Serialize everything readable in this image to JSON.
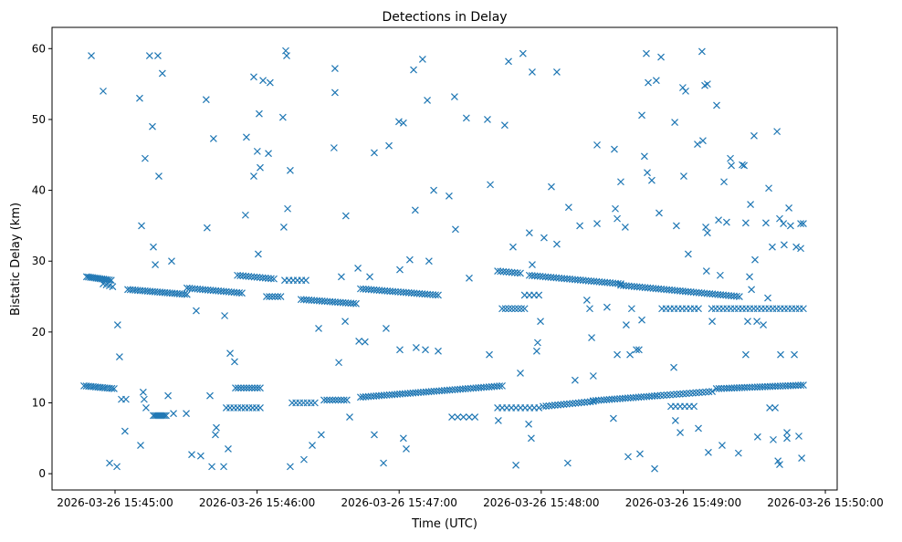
{
  "chart_data": {
    "type": "scatter",
    "title": "Detections in Delay",
    "xlabel": "Time (UTC)",
    "ylabel": "Bistatic Delay (km)",
    "x_units": "seconds after 2026-03-26 15:44:00 UTC",
    "xlim": [
      33.4,
      365.0
    ],
    "ylim": [
      -2.3,
      63.0
    ],
    "grid": false,
    "marker": "x",
    "color": "#1f77b4",
    "x_ticks": [
      {
        "value": 60,
        "label": "2026-03-26 15:45:00"
      },
      {
        "value": 120,
        "label": "2026-03-26 15:46:00"
      },
      {
        "value": 180,
        "label": "2026-03-26 15:47:00"
      },
      {
        "value": 240,
        "label": "2026-03-26 15:48:00"
      },
      {
        "value": 300,
        "label": "2026-03-26 15:49:00"
      },
      {
        "value": 360,
        "label": "2026-03-26 15:50:00"
      }
    ],
    "y_ticks": [
      {
        "value": 0,
        "label": "0"
      },
      {
        "value": 10,
        "label": "10"
      },
      {
        "value": 20,
        "label": "20"
      },
      {
        "value": 30,
        "label": "30"
      },
      {
        "value": 40,
        "label": "40"
      },
      {
        "value": 50,
        "label": "50"
      },
      {
        "value": 60,
        "label": "60"
      }
    ],
    "track_segments": [
      [
        48.0,
        27.8,
        58.4,
        27.3,
        14
      ],
      [
        55,
        26.8,
        59,
        26.4,
        4
      ],
      [
        65.4,
        26.0,
        90.4,
        25.3,
        25
      ],
      [
        90.4,
        26.2,
        113.6,
        25.5,
        22
      ],
      [
        111.7,
        28.0,
        127.1,
        27.5,
        14
      ],
      [
        124,
        25.0,
        130,
        25.0,
        6
      ],
      [
        131.7,
        27.3,
        140.6,
        27.3,
        6
      ],
      [
        138.6,
        24.6,
        161.8,
        24.0,
        22
      ],
      [
        163.7,
        26.1,
        196.5,
        25.2,
        30
      ],
      [
        221.6,
        28.6,
        231.2,
        28.3,
        9
      ],
      [
        223.5,
        23.3,
        233,
        23.3,
        8
      ],
      [
        233,
        25.2,
        239,
        25.2,
        4
      ],
      [
        235,
        28.0,
        273.6,
        26.8,
        35
      ],
      [
        273.6,
        26.6,
        323.7,
        25.0,
        45
      ],
      [
        291,
        23.3,
        306.4,
        23.3,
        10
      ],
      [
        312,
        23.3,
        350.7,
        23.3,
        25
      ],
      [
        46.9,
        12.4,
        59.6,
        12.0,
        14
      ],
      [
        76.2,
        8.2,
        81.6,
        8.2,
        8
      ],
      [
        107,
        9.3,
        121.3,
        9.3,
        10
      ],
      [
        110.9,
        12.1,
        121.3,
        12.1,
        10
      ],
      [
        134.8,
        10.0,
        144.4,
        10.0,
        7
      ],
      [
        148.3,
        10.4,
        157.9,
        10.4,
        9
      ],
      [
        163.7,
        10.8,
        223.5,
        12.4,
        55
      ],
      [
        221.6,
        9.3,
        239,
        9.3,
        10
      ],
      [
        240.8,
        9.5,
        262,
        10.2,
        18
      ],
      [
        262,
        10.3,
        289,
        11.0,
        25
      ],
      [
        289,
        11.0,
        312.2,
        11.6,
        18
      ],
      [
        314,
        12.0,
        350.7,
        12.5,
        35
      ],
      [
        294.8,
        9.5,
        304.5,
        9.5,
        6
      ],
      [
        202.3,
        8.0,
        212,
        8.0,
        5
      ]
    ],
    "points": [
      [
        50.0,
        59
      ],
      [
        55.0,
        54
      ],
      [
        57.7,
        1.5
      ],
      [
        60.8,
        1
      ],
      [
        61.1,
        21
      ],
      [
        61.9,
        16.5
      ],
      [
        62.7,
        10.5
      ],
      [
        64.2,
        6
      ],
      [
        64.6,
        10.5
      ],
      [
        70.4,
        53
      ],
      [
        70.8,
        4
      ],
      [
        71.2,
        35
      ],
      [
        71.9,
        11.5
      ],
      [
        72.3,
        10.5
      ],
      [
        72.7,
        44.5
      ],
      [
        73.1,
        9.3
      ],
      [
        74.6,
        59
      ],
      [
        75.8,
        49
      ],
      [
        76.2,
        32
      ],
      [
        77.0,
        29.5
      ],
      [
        78.1,
        59
      ],
      [
        78.5,
        42
      ],
      [
        80.0,
        56.5
      ],
      [
        82.4,
        11
      ],
      [
        83.9,
        30
      ],
      [
        84.7,
        8.5
      ],
      [
        90.1,
        8.5
      ],
      [
        92.4,
        2.7
      ],
      [
        94.3,
        23
      ],
      [
        96.2,
        2.5
      ],
      [
        98.5,
        52.8
      ],
      [
        98.9,
        34.7
      ],
      [
        100.1,
        11
      ],
      [
        100.9,
        1
      ],
      [
        101.6,
        47.3
      ],
      [
        102.4,
        5.5
      ],
      [
        102.8,
        6.5
      ],
      [
        105.9,
        1
      ],
      [
        106.3,
        22.3
      ],
      [
        107.8,
        3.5
      ],
      [
        108.6,
        17
      ],
      [
        110.5,
        15.8
      ],
      [
        115.1,
        36.5
      ],
      [
        115.5,
        47.5
      ],
      [
        118.6,
        56
      ],
      [
        118.6,
        42
      ],
      [
        120.1,
        45.5
      ],
      [
        120.5,
        31
      ],
      [
        120.9,
        50.8
      ],
      [
        121.3,
        43.2
      ],
      [
        122.5,
        55.5
      ],
      [
        124.8,
        45.2
      ],
      [
        125.5,
        55.2
      ],
      [
        130.9,
        50.3
      ],
      [
        131.3,
        34.8
      ],
      [
        132.1,
        59.7
      ],
      [
        132.5,
        59
      ],
      [
        132.9,
        37.4
      ],
      [
        134.0,
        42.8
      ],
      [
        134.0,
        1
      ],
      [
        139.8,
        2
      ],
      [
        143.3,
        4
      ],
      [
        146.0,
        20.5
      ],
      [
        147.1,
        5.5
      ],
      [
        152.5,
        46
      ],
      [
        152.9,
        57.2
      ],
      [
        152.9,
        53.8
      ],
      [
        154.5,
        15.7
      ],
      [
        155.6,
        27.8
      ],
      [
        157.2,
        21.5
      ],
      [
        157.5,
        36.4
      ],
      [
        159.1,
        8
      ],
      [
        162.6,
        29
      ],
      [
        163.0,
        18.7
      ],
      [
        165.6,
        18.6
      ],
      [
        167.6,
        27.8
      ],
      [
        169.5,
        45.3
      ],
      [
        169.5,
        5.5
      ],
      [
        173.4,
        1.5
      ],
      [
        174.5,
        20.5
      ],
      [
        175.7,
        46.3
      ],
      [
        179.9,
        49.7
      ],
      [
        180.3,
        28.8
      ],
      [
        180.3,
        17.5
      ],
      [
        181.8,
        49.5
      ],
      [
        181.8,
        5
      ],
      [
        183.0,
        3.5
      ],
      [
        184.5,
        30.2
      ],
      [
        186.1,
        57
      ],
      [
        186.8,
        37.2
      ],
      [
        187.2,
        17.8
      ],
      [
        189.9,
        58.5
      ],
      [
        191.1,
        17.5
      ],
      [
        191.9,
        52.7
      ],
      [
        192.6,
        30
      ],
      [
        194.6,
        40
      ],
      [
        196.5,
        17.3
      ],
      [
        201.1,
        39.2
      ],
      [
        203.4,
        53.2
      ],
      [
        203.8,
        34.5
      ],
      [
        208.4,
        50.2
      ],
      [
        209.6,
        27.6
      ],
      [
        217.3,
        50
      ],
      [
        218.1,
        16.8
      ],
      [
        218.5,
        40.8
      ],
      [
        221.9,
        7.5
      ],
      [
        224.6,
        49.2
      ],
      [
        226.2,
        58.2
      ],
      [
        228.1,
        32
      ],
      [
        229.3,
        1.2
      ],
      [
        231.2,
        14.2
      ],
      [
        232.3,
        59.3
      ],
      [
        234.7,
        7
      ],
      [
        235.0,
        34
      ],
      [
        235.8,
        5
      ],
      [
        236.2,
        56.7
      ],
      [
        236.2,
        29.5
      ],
      [
        238.1,
        17.3
      ],
      [
        238.5,
        18.5
      ],
      [
        239.7,
        21.5
      ],
      [
        241.2,
        33.3
      ],
      [
        244.3,
        40.5
      ],
      [
        246.6,
        56.7
      ],
      [
        246.6,
        32.4
      ],
      [
        251.2,
        1.5
      ],
      [
        251.6,
        37.6
      ],
      [
        254.3,
        13.2
      ],
      [
        256.3,
        35
      ],
      [
        259.3,
        24.5
      ],
      [
        260.5,
        23.3
      ],
      [
        261.3,
        19.2
      ],
      [
        262.0,
        13.8
      ],
      [
        263.6,
        46.4
      ],
      [
        263.6,
        35.3
      ],
      [
        267.8,
        23.5
      ],
      [
        270.5,
        7.8
      ],
      [
        270.9,
        45.8
      ],
      [
        271.3,
        37.4
      ],
      [
        272.1,
        36
      ],
      [
        272.1,
        16.8
      ],
      [
        273.6,
        41.2
      ],
      [
        275.5,
        34.8
      ],
      [
        275.9,
        21
      ],
      [
        276.7,
        2.4
      ],
      [
        277.5,
        16.8
      ],
      [
        278.2,
        23.3
      ],
      [
        280.2,
        17.5
      ],
      [
        281.3,
        17.5
      ],
      [
        281.7,
        2.8
      ],
      [
        282.5,
        50.6
      ],
      [
        282.5,
        21.7
      ],
      [
        283.6,
        44.8
      ],
      [
        284.4,
        59.3
      ],
      [
        284.8,
        42.5
      ],
      [
        285.2,
        55.2
      ],
      [
        286.7,
        41.4
      ],
      [
        287.9,
        0.7
      ],
      [
        288.6,
        55.5
      ],
      [
        289.8,
        36.8
      ],
      [
        290.6,
        58.8
      ],
      [
        296.0,
        15
      ],
      [
        296.4,
        49.6
      ],
      [
        296.7,
        7.5
      ],
      [
        297.1,
        35
      ],
      [
        298.7,
        5.8
      ],
      [
        299.8,
        54.5
      ],
      [
        300.2,
        42
      ],
      [
        301.0,
        54
      ],
      [
        302.1,
        31
      ],
      [
        306.0,
        46.5
      ],
      [
        306.4,
        6.4
      ],
      [
        307.9,
        59.6
      ],
      [
        308.3,
        47
      ],
      [
        309.1,
        54.8
      ],
      [
        309.5,
        34.8
      ],
      [
        309.8,
        28.6
      ],
      [
        310.2,
        34
      ],
      [
        310.2,
        55
      ],
      [
        310.6,
        3
      ],
      [
        312.2,
        21.5
      ],
      [
        314.1,
        52
      ],
      [
        314.9,
        35.8
      ],
      [
        315.6,
        28
      ],
      [
        316.4,
        4
      ],
      [
        317.2,
        41.2
      ],
      [
        318.3,
        35.5
      ],
      [
        319.9,
        44.5
      ],
      [
        320.3,
        43.5
      ],
      [
        323.3,
        2.9
      ],
      [
        324.9,
        43.6
      ],
      [
        325.7,
        43.5
      ],
      [
        326.4,
        35.4
      ],
      [
        326.4,
        16.8
      ],
      [
        327.2,
        21.5
      ],
      [
        328.0,
        27.8
      ],
      [
        328.4,
        38
      ],
      [
        328.8,
        26
      ],
      [
        329.9,
        47.7
      ],
      [
        330.3,
        30.2
      ],
      [
        331.1,
        21.5
      ],
      [
        331.4,
        5.2
      ],
      [
        333.8,
        21
      ],
      [
        334.9,
        35.4
      ],
      [
        335.7,
        24.8
      ],
      [
        336.1,
        40.3
      ],
      [
        336.5,
        9.3
      ],
      [
        337.6,
        32
      ],
      [
        338.0,
        4.8
      ],
      [
        338.8,
        9.3
      ],
      [
        339.6,
        48.3
      ],
      [
        340.0,
        1.8
      ],
      [
        340.7,
        36
      ],
      [
        340.7,
        1.3
      ],
      [
        341.1,
        16.8
      ],
      [
        342.3,
        35.3
      ],
      [
        342.6,
        32.3
      ],
      [
        343.8,
        5
      ],
      [
        343.8,
        5.8
      ],
      [
        344.6,
        37.5
      ],
      [
        345.3,
        35
      ],
      [
        346.9,
        16.8
      ],
      [
        347.7,
        32
      ],
      [
        348.8,
        5.3
      ],
      [
        349.6,
        35.3
      ],
      [
        349.6,
        31.8
      ],
      [
        350.0,
        2.2
      ],
      [
        350.7,
        35.3
      ]
    ]
  }
}
